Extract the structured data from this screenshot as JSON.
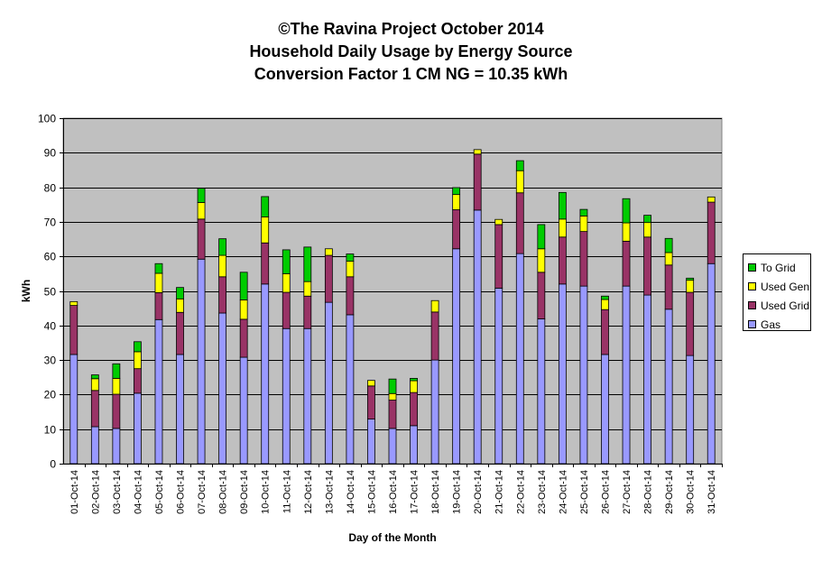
{
  "title_lines": [
    "©The Ravina Project October 2014",
    "Household Daily Usage by Energy Source",
    "Conversion Factor 1 CM NG = 10.35 kWh"
  ],
  "colors": {
    "plot_background": "#C0C0C0",
    "gridline": "#000000",
    "Gas": "#9999FF",
    "Used Grid": "#993366",
    "Used Gen": "#FFFF00",
    "To Grid": "#00CC00"
  },
  "chart_data": {
    "type": "bar",
    "stacked": true,
    "title": "©The Ravina Project October 2014 Household Daily Usage by Energy Source Conversion Factor 1 CM NG = 10.35 kWh",
    "xlabel": "Day of the Month",
    "ylabel": "kWh",
    "ylim": [
      0,
      100
    ],
    "y_ticks": [
      0,
      10,
      20,
      30,
      40,
      50,
      60,
      70,
      80,
      90,
      100
    ],
    "grid": true,
    "legend_position": "right",
    "legend_order": [
      "To Grid",
      "Used Gen",
      "Used Grid",
      "Gas"
    ],
    "categories": [
      "01-Oct-14",
      "02-Oct-14",
      "03-Oct-14",
      "04-Oct-14",
      "05-Oct-14",
      "06-Oct-14",
      "07-Oct-14",
      "08-Oct-14",
      "09-Oct-14",
      "10-Oct-14",
      "11-Oct-14",
      "12-Oct-14",
      "13-Oct-14",
      "14-Oct-14",
      "15-Oct-14",
      "16-Oct-14",
      "17-Oct-14",
      "18-Oct-14",
      "19-Oct-14",
      "20-Oct-14",
      "21-Oct-14",
      "22-Oct-14",
      "23-Oct-14",
      "24-Oct-14",
      "25-Oct-14",
      "26-Oct-14",
      "27-Oct-14",
      "28-Oct-14",
      "29-Oct-14",
      "30-Oct-14",
      "31-Oct-14"
    ],
    "series": [
      {
        "name": "Gas",
        "values": [
          31.6,
          10.7,
          10.2,
          20.4,
          41.7,
          31.6,
          59.2,
          43.6,
          30.8,
          52.0,
          39.1,
          39.1,
          46.7,
          43.1,
          12.9,
          10.2,
          11.0,
          30.0,
          62.2,
          73.4,
          50.8,
          60.8,
          41.9,
          52.0,
          51.4,
          31.6,
          51.4,
          48.8,
          44.7,
          31.3,
          57.9
        ]
      },
      {
        "name": "Used Grid",
        "values": [
          14.2,
          10.5,
          9.9,
          7.1,
          7.8,
          12.2,
          11.6,
          10.5,
          11.0,
          11.9,
          10.5,
          9.4,
          13.6,
          11.0,
          9.6,
          8.2,
          9.6,
          13.9,
          11.3,
          16.2,
          18.4,
          17.6,
          13.5,
          13.6,
          15.8,
          13.0,
          13.0,
          16.8,
          12.8,
          18.3,
          17.8
        ]
      },
      {
        "name": "Used Gen",
        "values": [
          1.1,
          3.4,
          4.6,
          4.9,
          5.6,
          3.9,
          4.8,
          6.2,
          5.6,
          7.5,
          5.4,
          4.2,
          1.9,
          4.5,
          1.6,
          1.9,
          3.4,
          3.3,
          4.4,
          1.3,
          1.5,
          6.4,
          6.8,
          5.2,
          4.5,
          2.9,
          5.3,
          4.2,
          3.6,
          3.5,
          1.5
        ]
      },
      {
        "name": "To Grid",
        "values": [
          0,
          1.1,
          4.2,
          2.9,
          2.8,
          3.3,
          4.1,
          4.8,
          8.0,
          5.9,
          6.9,
          10.0,
          0,
          2.1,
          0,
          4.2,
          0.7,
          0,
          2.0,
          0,
          0,
          2.9,
          7.0,
          7.7,
          1.9,
          1.0,
          7.0,
          2.1,
          4.1,
          0.6,
          0
        ]
      }
    ]
  }
}
